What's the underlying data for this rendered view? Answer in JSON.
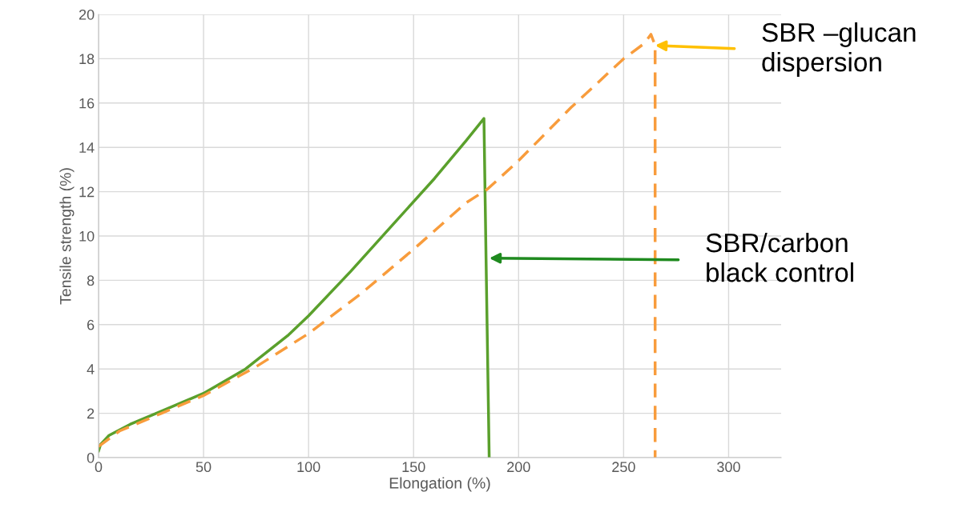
{
  "chart_data": {
    "type": "line",
    "xlabel": "Elongation (%)",
    "ylabel": "Tensile strength (%)",
    "xlim": [
      0,
      325
    ],
    "xticks": [
      0,
      50,
      100,
      150,
      200,
      250,
      300
    ],
    "ylim": [
      0,
      20
    ],
    "yticks": [
      0,
      2,
      4,
      6,
      8,
      10,
      12,
      14,
      16,
      18,
      20
    ],
    "grid": true,
    "series": [
      {
        "color": "#5aa02c",
        "line_style": "solid",
        "x": [
          0,
          1,
          5,
          15,
          30,
          50,
          70,
          90,
          100,
          120,
          140,
          160,
          175,
          183.5,
          184.5,
          186
        ],
        "values": [
          0.3,
          0.6,
          1.0,
          1.5,
          2.1,
          2.9,
          4.0,
          5.5,
          6.4,
          8.4,
          10.5,
          12.6,
          14.3,
          15.3,
          9,
          0
        ]
      },
      {
        "color": "#f89c3c",
        "line_style": "dashed",
        "x": [
          0,
          10,
          30,
          50,
          75,
          100,
          125,
          150,
          175,
          185,
          200,
          225,
          250,
          260,
          263,
          265,
          265
        ],
        "values": [
          0.5,
          1.2,
          2.0,
          2.8,
          4.1,
          5.6,
          7.4,
          9.4,
          11.5,
          12.1,
          13.4,
          15.8,
          18.0,
          18.7,
          19.1,
          18.6,
          0
        ]
      }
    ],
    "annotations": [
      {
        "text": "SBR/carbon\nblack control",
        "x": 186,
        "y": 9
      },
      {
        "text": "SBR –glucan\ndispersion",
        "x": 265,
        "y": 18.6
      }
    ]
  }
}
